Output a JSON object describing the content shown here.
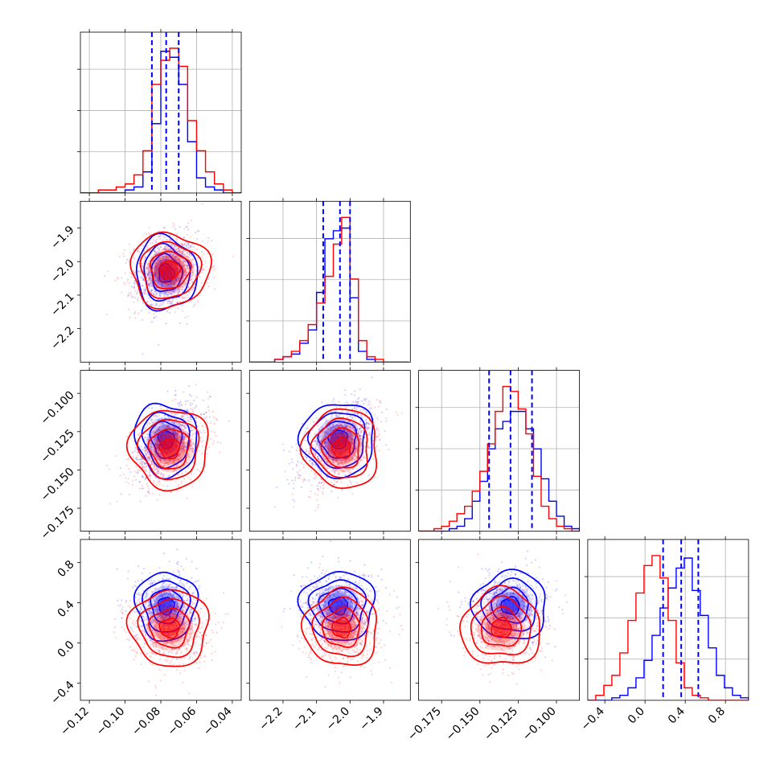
{
  "chart_data": {
    "type": "corner",
    "title": "",
    "grid": true,
    "parameters": [
      {
        "range": [
          -0.125,
          -0.035
        ],
        "ticks": [
          -0.12,
          -0.1,
          -0.08,
          -0.06,
          -0.04
        ],
        "tick_labels": [
          "−0.12",
          "−0.10",
          "−0.08",
          "−0.06",
          "−0.04"
        ]
      },
      {
        "range": [
          -2.3,
          -1.82
        ],
        "ticks": [
          -2.2,
          -2.1,
          -2.0,
          -1.9
        ],
        "tick_labels": [
          "−2.2",
          "−2.1",
          "−2.0",
          "−1.9"
        ]
      },
      {
        "range": [
          -0.19,
          -0.085
        ],
        "ticks": [
          -0.175,
          -0.15,
          -0.125,
          -0.1
        ],
        "tick_labels": [
          "−0.175",
          "−0.150",
          "−0.125",
          "−0.100"
        ]
      },
      {
        "range": [
          -0.57,
          1.03
        ],
        "ticks": [
          -0.4,
          0.0,
          0.4,
          0.8
        ],
        "tick_labels": [
          "−0.4",
          "0.0",
          "0.4",
          "0.8"
        ]
      }
    ],
    "series": [
      {
        "color": "#0000ff",
        "means": [
          -0.077,
          -2.035,
          -0.13,
          0.37
        ],
        "sigmas": [
          0.0085,
          0.055,
          0.012,
          0.17
        ],
        "quantiles_color": "#0000ff"
      },
      {
        "color": "#ff0000",
        "means": [
          -0.075,
          -2.025,
          -0.136,
          0.15
        ],
        "sigmas": [
          0.011,
          0.055,
          0.013,
          0.19
        ]
      }
    ],
    "quantiles": {
      "p0": [
        -0.085,
        -2.08,
        -0.144,
        0.18
      ],
      "p1": [
        -0.077,
        -2.03,
        -0.13,
        0.36
      ],
      "p2": [
        -0.07,
        -2.0,
        -0.116,
        0.53
      ]
    },
    "marginal_histograms": {
      "p0": {
        "bins": [
          -0.125,
          -0.12,
          -0.115,
          -0.11,
          -0.105,
          -0.1,
          -0.095,
          -0.09,
          -0.085,
          -0.08,
          -0.075,
          -0.07,
          -0.065,
          -0.06,
          -0.055,
          -0.05,
          -0.045,
          -0.04,
          -0.035
        ],
        "blue": [
          0,
          0,
          0,
          0,
          0,
          1,
          2,
          7,
          23,
          47,
          45,
          36,
          17,
          5,
          2,
          1,
          0,
          0
        ],
        "red": [
          0,
          0,
          1,
          1,
          2,
          3,
          6,
          14,
          36,
          44,
          48,
          42,
          24,
          14,
          7,
          3,
          1,
          0
        ]
      },
      "p1": {
        "bins": [
          -2.3,
          -2.275,
          -2.25,
          -2.225,
          -2.2,
          -2.175,
          -2.15,
          -2.125,
          -2.1,
          -2.075,
          -2.05,
          -2.025,
          -2.0,
          -1.975,
          -1.95,
          -1.925,
          -1.9,
          -1.875,
          -1.85,
          -1.825
        ],
        "blue": [
          0,
          0,
          0,
          1,
          2,
          3,
          7,
          12,
          26,
          46,
          49,
          50,
          24,
          4,
          1,
          0,
          0,
          0,
          0
        ],
        "red": [
          0,
          0,
          0,
          1,
          2,
          4,
          8,
          14,
          22,
          32,
          44,
          54,
          31,
          8,
          2,
          1,
          0,
          0,
          0
        ]
      },
      "p2": {
        "bins": [
          -0.19,
          -0.185,
          -0.18,
          -0.175,
          -0.17,
          -0.165,
          -0.16,
          -0.155,
          -0.15,
          -0.145,
          -0.14,
          -0.135,
          -0.13,
          -0.125,
          -0.12,
          -0.115,
          -0.11,
          -0.105,
          -0.1,
          -0.095,
          -0.09,
          -0.085
        ],
        "blue": [
          0,
          0,
          0,
          0,
          1,
          2,
          5,
          12,
          20,
          33,
          41,
          44,
          48,
          48,
          41,
          33,
          21,
          12,
          6,
          2,
          1
        ],
        "red": [
          0,
          0,
          1,
          2,
          4,
          7,
          10,
          16,
          24,
          35,
          48,
          58,
          56,
          49,
          39,
          22,
          10,
          5,
          2,
          1,
          0
        ]
      },
      "p3": {
        "bins": [
          -0.57,
          -0.49,
          -0.41,
          -0.33,
          -0.25,
          -0.17,
          -0.09,
          -0.01,
          0.07,
          0.15,
          0.23,
          0.31,
          0.39,
          0.47,
          0.55,
          0.63,
          0.71,
          0.79,
          0.87,
          0.95,
          1.03
        ],
        "blue": [
          0,
          0,
          0,
          1,
          2,
          5,
          9,
          16,
          26,
          37,
          45,
          53,
          57,
          44,
          34,
          21,
          10,
          5,
          2,
          1
        ],
        "red": [
          0,
          2,
          6,
          10,
          19,
          32,
          43,
          54,
          58,
          49,
          32,
          15,
          5,
          2,
          1,
          0,
          0,
          0,
          0,
          0
        ]
      }
    }
  }
}
